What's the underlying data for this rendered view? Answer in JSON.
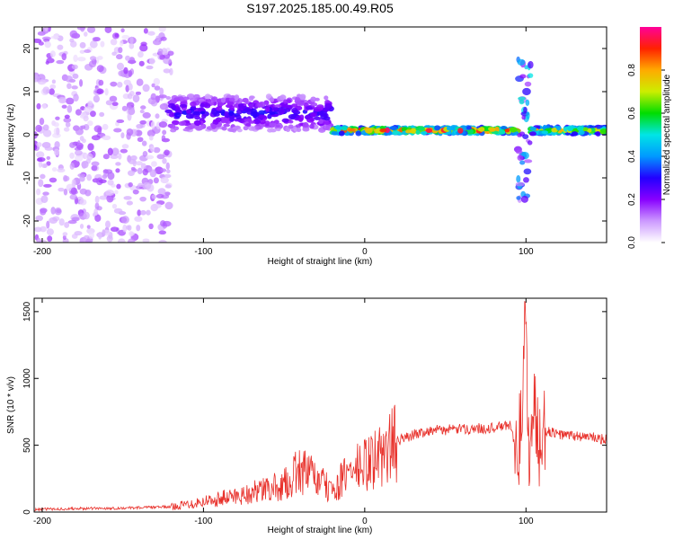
{
  "figure_title": "S197.2025.185.00.49.R05",
  "colors": {
    "snr_line": "#e8302a",
    "colormap": [
      "#ffffff",
      "#cc99ff",
      "#8800ff",
      "#2200ff",
      "#0099ff",
      "#00e5e5",
      "#00dd00",
      "#ccee00",
      "#ffaa00",
      "#ff2200",
      "#ff0099"
    ]
  },
  "chart_data": [
    {
      "type": "heatmap",
      "xlabel": "Height of straight line (km)",
      "ylabel": "Frequency (Hz)",
      "xlim": [
        -205,
        150
      ],
      "ylim": [
        -25,
        25
      ],
      "x_ticks": [
        -200,
        -100,
        0,
        100
      ],
      "x_tick_labels": [
        "-200",
        "-100",
        "0",
        "100"
      ],
      "y_ticks": [
        -20,
        -10,
        0,
        10,
        20
      ],
      "y_tick_labels": [
        "-20",
        "-10",
        "0",
        "10",
        "20"
      ],
      "colorbar": {
        "label": "Normalized spectral amplitude",
        "range": [
          0,
          1
        ],
        "ticks": [
          0.0,
          0.2,
          0.4,
          0.6,
          0.8
        ],
        "tick_labels": [
          "0.0",
          "0.2",
          "0.4",
          "0.6",
          "0.8"
        ]
      },
      "features": [
        {
          "x_range": [
            -205,
            -120
          ],
          "freq_range": [
            -25,
            25
          ],
          "amplitude": 0.1
        },
        {
          "x_range": [
            -122,
            -20
          ],
          "freq_center": 5,
          "freq_spread": 4,
          "amplitude": 0.3
        },
        {
          "x_range": [
            -20,
            95
          ],
          "freq_center": 1,
          "freq_spread": 0.7,
          "amplitude": 0.95
        },
        {
          "x_range": [
            95,
            103
          ],
          "freq_range": [
            -15,
            18
          ],
          "amplitude": 0.3
        },
        {
          "x_range": [
            103,
            150
          ],
          "freq_center": 1,
          "freq_spread": 0.8,
          "amplitude": 0.8
        }
      ]
    },
    {
      "type": "line",
      "xlabel": "Height of straight line (km)",
      "ylabel": "SNR (10 * v/v)",
      "xlim": [
        -205,
        150
      ],
      "ylim": [
        0,
        1600
      ],
      "x_ticks": [
        -200,
        -100,
        0,
        100
      ],
      "x_tick_labels": [
        "-200",
        "-100",
        "0",
        "100"
      ],
      "y_ticks": [
        0,
        500,
        1000,
        1500
      ],
      "y_tick_labels": [
        "0",
        "500",
        "1000",
        "1500"
      ],
      "series": [
        {
          "x": [
            -205,
            -180,
            -150,
            -120,
            -100,
            -80,
            -60,
            -50,
            -40,
            -30,
            -20,
            -10,
            0,
            10,
            20,
            30,
            40,
            60,
            80,
            90,
            95,
            98,
            100,
            102,
            105,
            108,
            110,
            120,
            130,
            140,
            150
          ],
          "y": [
            20,
            25,
            30,
            40,
            80,
            120,
            170,
            200,
            320,
            250,
            150,
            300,
            350,
            420,
            530,
            580,
            610,
            620,
            630,
            650,
            450,
            800,
            1560,
            200,
            900,
            400,
            620,
            580,
            570,
            560,
            540
          ]
        }
      ]
    }
  ]
}
